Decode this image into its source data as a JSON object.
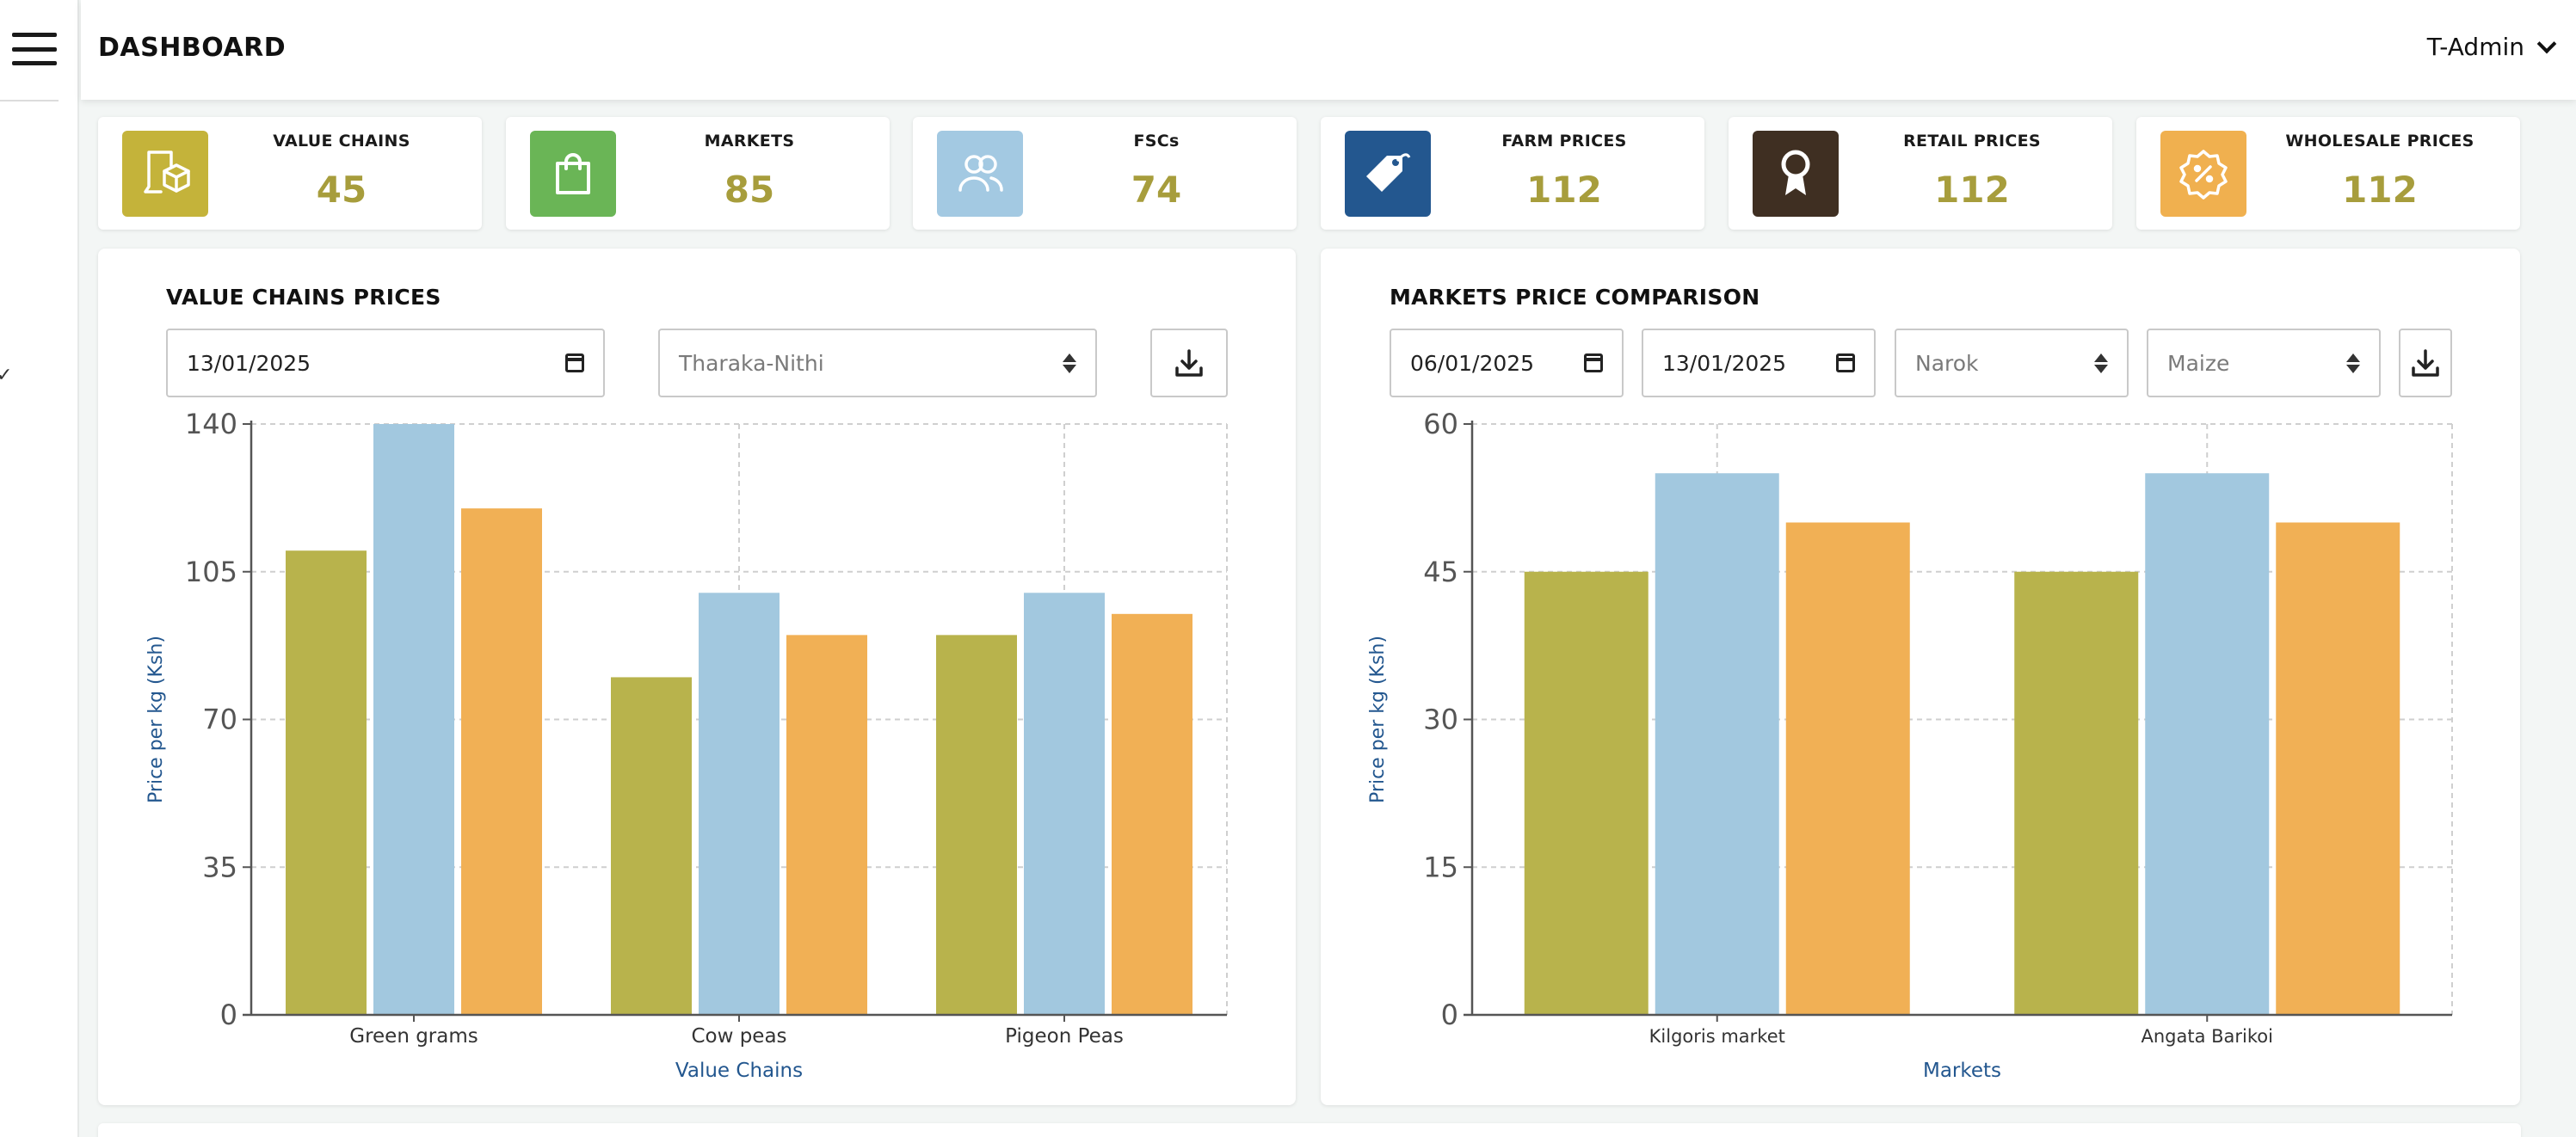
{
  "header": {
    "title": "DASHBOARD",
    "user": "T-Admin"
  },
  "stats": [
    {
      "label": "VALUE CHAINS",
      "value": "45",
      "icon": "package-icon",
      "color": "#c4b33a"
    },
    {
      "label": "MARKETS",
      "value": "85",
      "icon": "shopping-bag-icon",
      "color": "#6ab556"
    },
    {
      "label": "FSCs",
      "value": "74",
      "icon": "users-icon",
      "color": "#a3c9e2"
    },
    {
      "label": "FARM PRICES",
      "value": "112",
      "icon": "price-tag-icon",
      "color": "#23578f"
    },
    {
      "label": "RETAIL PRICES",
      "value": "112",
      "icon": "award-ribbon-icon",
      "color": "#3f2f22"
    },
    {
      "label": "WHOLESALE PRICES",
      "value": "112",
      "icon": "discount-badge-icon",
      "color": "#f0b04f"
    }
  ],
  "value_chains_panel": {
    "title": "VALUE CHAINS PRICES",
    "date": "13/01/2025",
    "county": "Tharaka-Nithi"
  },
  "markets_panel": {
    "title": "MARKETS PRICE COMPARISON",
    "date_from": "06/01/2025",
    "date_to": "13/01/2025",
    "county": "Narok",
    "commodity": "Maize"
  },
  "chart_data": [
    {
      "type": "bar",
      "title": "VALUE CHAINS PRICES",
      "xlabel": "Value Chains",
      "ylabel": "Price per kg (Ksh)",
      "categories": [
        "Green grams",
        "Cow peas",
        "Pigeon Peas"
      ],
      "ylim": [
        0,
        140
      ],
      "yticks": [
        0,
        35,
        70,
        105,
        140
      ],
      "grid": true,
      "series": [
        {
          "values": [
            110,
            80,
            90
          ],
          "color": "#b8b34c"
        },
        {
          "values": [
            140,
            100,
            100
          ],
          "color": "#a2c8df"
        },
        {
          "values": [
            120,
            90,
            95
          ],
          "color": "#f1b055"
        }
      ]
    },
    {
      "type": "bar",
      "title": "MARKETS PRICE COMPARISON",
      "xlabel": "Markets",
      "ylabel": "Price per kg (Ksh)",
      "categories": [
        "Kilgoris market",
        "Angata Barikoi"
      ],
      "ylim": [
        0,
        60
      ],
      "yticks": [
        0,
        15,
        30,
        45,
        60
      ],
      "grid": true,
      "series": [
        {
          "values": [
            45,
            45
          ],
          "color": "#b8b34c"
        },
        {
          "values": [
            55,
            55
          ],
          "color": "#a2c8df"
        },
        {
          "values": [
            50,
            50
          ],
          "color": "#f1b055"
        }
      ]
    }
  ]
}
